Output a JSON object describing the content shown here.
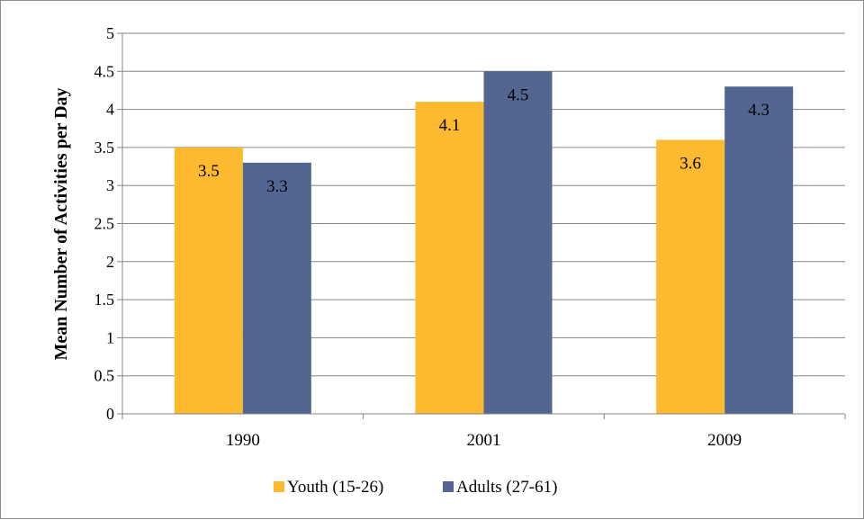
{
  "chart_data": {
    "type": "bar",
    "title": "",
    "xlabel": "",
    "ylabel": "Mean Number of Activities per Day",
    "categories": [
      "1990",
      "2001",
      "2009"
    ],
    "series": [
      {
        "name": "Youth (15-26)",
        "values": [
          3.5,
          4.1,
          3.6
        ],
        "color": "#FDB92F"
      },
      {
        "name": "Adults (27-61)",
        "values": [
          3.3,
          4.5,
          4.3
        ],
        "color": "#536591"
      }
    ],
    "ylim": [
      0,
      5
    ],
    "yticks": [
      "0",
      "0.5",
      "1",
      "1.5",
      "2",
      "2.5",
      "3",
      "3.5",
      "4",
      "4.5",
      "5"
    ],
    "data_labels": [
      [
        "3.5",
        "4.1",
        "3.6"
      ],
      [
        "3.3",
        "4.5",
        "4.3"
      ]
    ],
    "grid": true,
    "legend_position": "bottom"
  }
}
